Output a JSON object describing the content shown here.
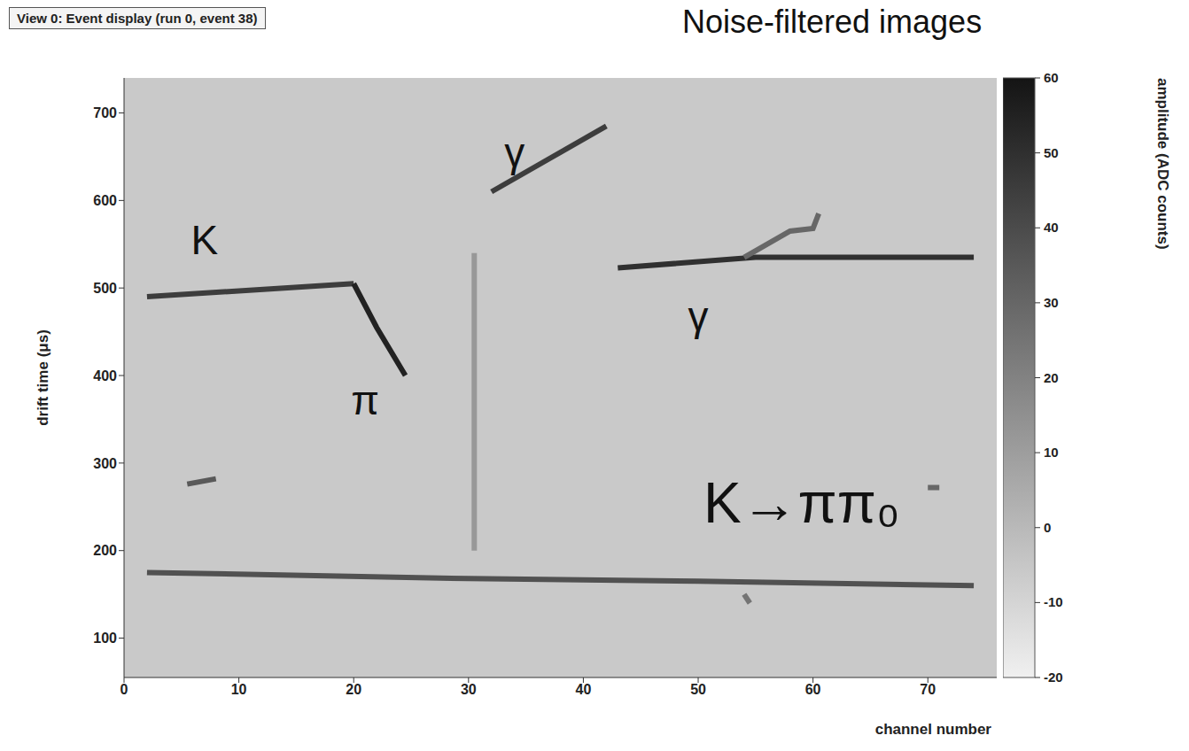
{
  "chart_data": {
    "type": "line",
    "title": "View 0: Event display (run 0, event 38)",
    "subtitle": "Noise-filtered images",
    "x_label": "channel number",
    "y_label": "drift time (μs)",
    "xlim": [
      0,
      76
    ],
    "ylim": [
      55,
      740
    ],
    "xticks": [
      0,
      10,
      20,
      30,
      40,
      50,
      60,
      70
    ],
    "yticks": [
      100,
      200,
      300,
      400,
      500,
      600,
      700
    ],
    "grid": false,
    "colorbar": {
      "label": "amplitude (ADC counts)",
      "range": [
        -20,
        60
      ],
      "ticks": [
        -20,
        -10,
        0,
        10,
        20,
        30,
        40,
        50,
        60
      ]
    },
    "tracks": [
      {
        "x": [
          2,
          20
        ],
        "y": [
          490,
          505
        ],
        "amplitude": 45
      },
      {
        "x": [
          20,
          22,
          24.5
        ],
        "y": [
          505,
          455,
          400
        ],
        "amplitude": 55
      },
      {
        "x": [
          32,
          42
        ],
        "y": [
          610,
          685
        ],
        "amplitude": 45
      },
      {
        "x": [
          30.5,
          30.5
        ],
        "y": [
          200,
          540
        ],
        "amplitude": 12
      },
      {
        "x": [
          43,
          55,
          74
        ],
        "y": [
          523,
          535,
          535
        ],
        "amplitude": 50
      },
      {
        "x": [
          54,
          58,
          60,
          60.5
        ],
        "y": [
          535,
          565,
          568,
          585
        ],
        "amplitude": 30
      },
      {
        "x": [
          2,
          30,
          50,
          74
        ],
        "y": [
          175,
          168,
          165,
          160
        ],
        "amplitude": 38
      },
      {
        "x": [
          5.5,
          8
        ],
        "y": [
          276,
          282
        ],
        "amplitude": 35
      },
      {
        "x": [
          70,
          71
        ],
        "y": [
          272,
          272
        ],
        "amplitude": 30
      },
      {
        "x": [
          54,
          54.5
        ],
        "y": [
          150,
          140
        ],
        "amplitude": 25
      }
    ],
    "annotations": [
      {
        "text": "K",
        "x": 7,
        "y": 555
      },
      {
        "text": "π",
        "x": 21,
        "y": 372
      },
      {
        "text": "γ",
        "x": 34,
        "y": 655
      },
      {
        "text": "γ",
        "x": 50,
        "y": 468
      },
      {
        "text": "K→ππ₀",
        "x": 59,
        "y": 255
      }
    ]
  }
}
